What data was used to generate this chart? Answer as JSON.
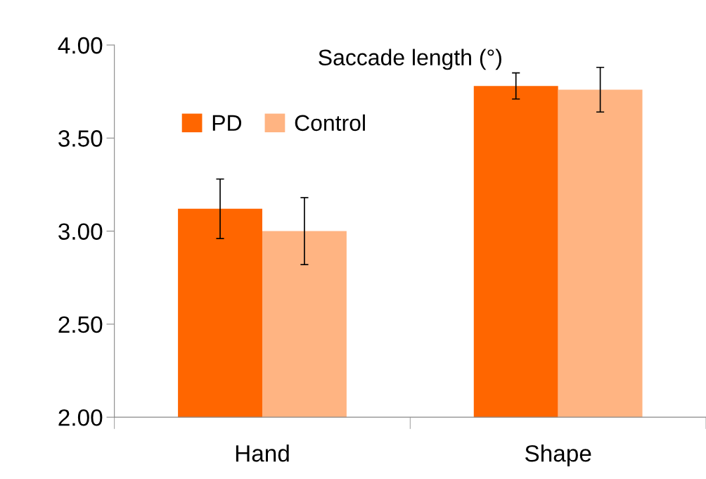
{
  "chart_data": {
    "type": "bar",
    "title": "Saccade length (°)",
    "categories": [
      "Hand",
      "Shape"
    ],
    "series": [
      {
        "name": "PD",
        "color": "#ff6600",
        "values": [
          3.12,
          3.78
        ],
        "errors": [
          0.16,
          0.07
        ]
      },
      {
        "name": "Control",
        "color": "#ffb482",
        "values": [
          3.0,
          3.76
        ],
        "errors": [
          0.18,
          0.12
        ]
      }
    ],
    "ylim": [
      2.0,
      4.0
    ],
    "yticks": [
      {
        "value": 2.0,
        "label": "2.00"
      },
      {
        "value": 2.5,
        "label": "2.50"
      },
      {
        "value": 3.0,
        "label": "3.00"
      },
      {
        "value": 3.5,
        "label": "3.50"
      },
      {
        "value": 4.0,
        "label": "4.00"
      }
    ],
    "grid": false,
    "legend": "top left"
  }
}
